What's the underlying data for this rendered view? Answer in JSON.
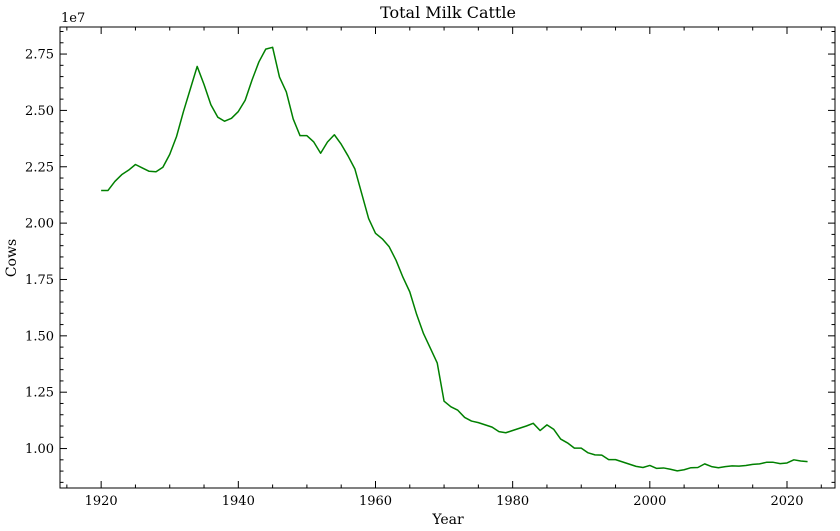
{
  "chart_data": {
    "type": "line",
    "title": "Total Milk Cattle",
    "xlabel": "Year",
    "ylabel": "Cows",
    "y_offset_label": "1e7",
    "xlim": [
      1914,
      2027
    ],
    "ylim": [
      8250000,
      28700000
    ],
    "x_ticks": [
      1920,
      1940,
      1960,
      1980,
      2000,
      2020
    ],
    "y_ticks": [
      10000000,
      12500000,
      15000000,
      17500000,
      20000000,
      22500000,
      25000000,
      27500000
    ],
    "y_tick_labels": [
      "1.00",
      "1.25",
      "1.50",
      "1.75",
      "2.00",
      "2.25",
      "2.50",
      "2.75"
    ],
    "grid": false,
    "line_color": "#008000",
    "series": [
      {
        "x": [
          1920,
          1921,
          1922,
          1923,
          1924,
          1925,
          1926,
          1927,
          1928,
          1929,
          1930,
          1931,
          1932,
          1933,
          1934,
          1935,
          1936,
          1937,
          1938,
          1939,
          1940,
          1941,
          1942,
          1943,
          1944,
          1945,
          1946,
          1947,
          1948,
          1949,
          1950,
          1951,
          1952,
          1953,
          1954,
          1955,
          1956,
          1957,
          1958,
          1959,
          1960,
          1961,
          1962,
          1963,
          1964,
          1965,
          1966,
          1967,
          1968,
          1969,
          1970,
          1971,
          1972,
          1973,
          1974,
          1975,
          1976,
          1977,
          1978,
          1979,
          1980,
          1981,
          1982,
          1983,
          1984,
          1985,
          1986,
          1987,
          1988,
          1989,
          1990,
          1991,
          1992,
          1993,
          1994,
          1995,
          1996,
          1997,
          1998,
          1999,
          2000,
          2001,
          2002,
          2003,
          2004,
          2005,
          2006,
          2007,
          2008,
          2009,
          2010,
          2011,
          2012,
          2013,
          2014,
          2015,
          2016,
          2017,
          2018,
          2019,
          2020,
          2021,
          2022,
          2023
        ],
        "y": [
          21450000,
          21450000,
          21850000,
          22150000,
          22350000,
          22600000,
          22450000,
          22300000,
          22280000,
          22480000,
          23050000,
          23850000,
          24950000,
          25950000,
          26950000,
          26150000,
          25250000,
          24700000,
          24520000,
          24650000,
          24950000,
          25450000,
          26350000,
          27150000,
          27720000,
          27800000,
          26480000,
          25820000,
          24620000,
          23880000,
          23880000,
          23600000,
          23100000,
          23600000,
          23920000,
          23500000,
          22980000,
          22400000,
          21300000,
          20200000,
          19550000,
          19300000,
          18950000,
          18350000,
          17600000,
          16950000,
          15950000,
          15100000,
          14450000,
          13800000,
          12100000,
          11850000,
          11700000,
          11380000,
          11220000,
          11150000,
          11050000,
          10950000,
          10750000,
          10700000,
          10800000,
          10900000,
          11000000,
          11120000,
          10800000,
          11050000,
          10850000,
          10420000,
          10250000,
          10020000,
          10020000,
          9810000,
          9720000,
          9710000,
          9510000,
          9510000,
          9410000,
          9310000,
          9210000,
          9160000,
          9250000,
          9120000,
          9140000,
          9080000,
          9010000,
          9060000,
          9150000,
          9160000,
          9320000,
          9200000,
          9150000,
          9200000,
          9230000,
          9220000,
          9250000,
          9300000,
          9320000,
          9390000,
          9390000,
          9330000,
          9360000,
          9500000,
          9450000,
          9420000
        ]
      }
    ]
  }
}
